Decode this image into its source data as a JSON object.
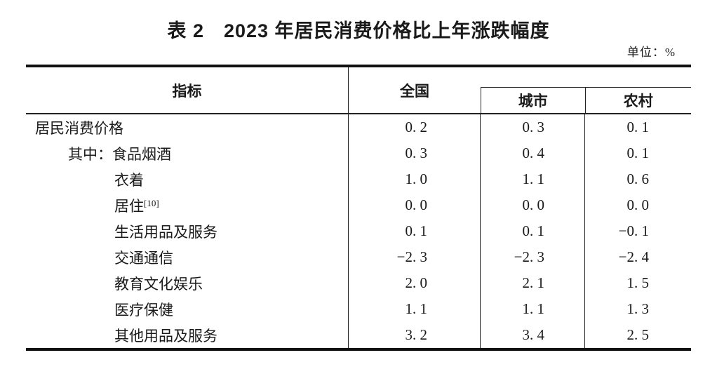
{
  "title": "表 2　2023 年居民消费价格比上年涨跌幅度",
  "unit_label": "单位：%",
  "table": {
    "border_color": "#111111",
    "columns": {
      "indicator": "指标",
      "national": "全国",
      "urban": "城市",
      "rural": "农村"
    },
    "rows": [
      {
        "label": "居民消费价格",
        "indent": 0,
        "national": "0.2",
        "urban": "0.3",
        "rural": "0.1"
      },
      {
        "label": "其中：食品烟酒",
        "indent": 1,
        "national": "0.3",
        "urban": "0.4",
        "rural": "0.1"
      },
      {
        "label": "衣着",
        "indent": 2,
        "national": "1.0",
        "urban": "1.1",
        "rural": "0.6"
      },
      {
        "label": "居住",
        "superscript": "[10]",
        "indent": 2,
        "national": "0.0",
        "urban": "0.0",
        "rural": "0.0"
      },
      {
        "label": "生活用品及服务",
        "indent": 2,
        "national": "0.1",
        "urban": "0.1",
        "rural": "-0.1"
      },
      {
        "label": "交通通信",
        "indent": 2,
        "national": "-2.3",
        "urban": "-2.3",
        "rural": "-2.4"
      },
      {
        "label": "教育文化娱乐",
        "indent": 2,
        "national": "2.0",
        "urban": "2.1",
        "rural": "1.5"
      },
      {
        "label": "医疗保健",
        "indent": 2,
        "national": "1.1",
        "urban": "1.1",
        "rural": "1.3"
      },
      {
        "label": "其他用品及服务",
        "indent": 2,
        "national": "3.2",
        "urban": "3.4",
        "rural": "2.5"
      }
    ]
  },
  "chart_data": {
    "type": "table",
    "title": "表 2　2023 年居民消费价格比上年涨跌幅度",
    "unit": "%",
    "categories": [
      "居民消费价格",
      "其中：食品烟酒",
      "衣着",
      "居住[10]",
      "生活用品及服务",
      "交通通信",
      "教育文化娱乐",
      "医疗保健",
      "其他用品及服务"
    ],
    "series": [
      {
        "name": "全国",
        "values": [
          0.2,
          0.3,
          1.0,
          0.0,
          0.1,
          -2.3,
          2.0,
          1.1,
          3.2
        ]
      },
      {
        "name": "城市",
        "values": [
          0.3,
          0.4,
          1.1,
          0.0,
          0.1,
          -2.3,
          2.1,
          1.1,
          3.4
        ]
      },
      {
        "name": "农村",
        "values": [
          0.1,
          0.1,
          0.6,
          0.0,
          -0.1,
          -2.4,
          1.5,
          1.3,
          2.5
        ]
      }
    ]
  }
}
